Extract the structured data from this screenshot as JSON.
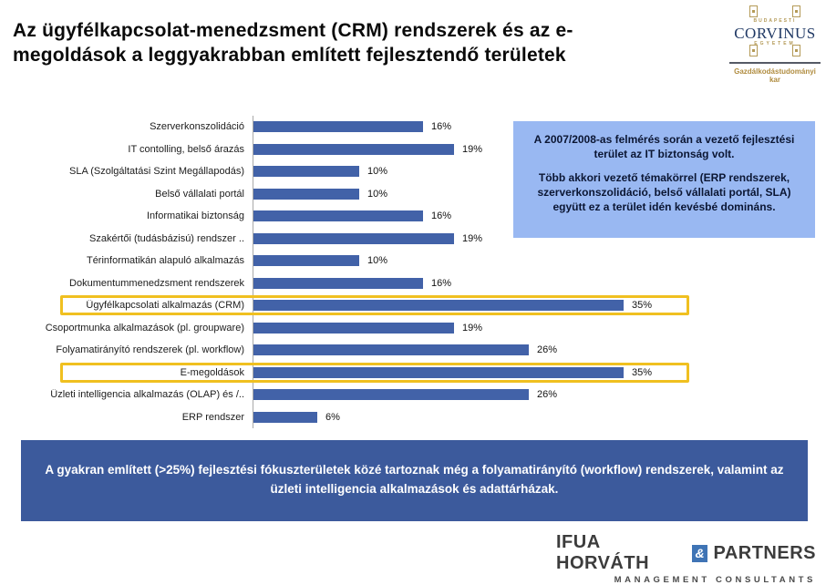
{
  "slide": {
    "title_lines": [
      "Az ügyfélkapcsolat-menedzsment (CRM) rendszerek és az e-",
      "megoldások a leggyakrabban említett fejlesztendő területek"
    ]
  },
  "logos": {
    "corvinus": {
      "top_word": "BUDAPESTI",
      "name": "CORVINUS",
      "sub_word": "EGYETEM",
      "faculty": "Gazdálkodástudományi kar"
    },
    "ifua": {
      "name_left": "IFUA HORVÁTH",
      "ampersand": "&",
      "name_right": "PARTNERS",
      "subtitle": "MANAGEMENT CONSULTANTS"
    }
  },
  "chart_data": {
    "type": "bar",
    "orientation": "horizontal",
    "title": "",
    "xlabel": "",
    "ylabel": "",
    "xlim": [
      0,
      40
    ],
    "grid": false,
    "legend": false,
    "categories": [
      "Szerverkonszolidáció",
      "IT contolling, belső árazás",
      "SLA (Szolgáltatási Szint Megállapodás)",
      "Belső vállalati portál",
      "Informatikai biztonság",
      "Szakértői (tudásbázisú) rendszer ..",
      "Térinformatikán alapuló alkalmazás",
      "Dokumentummenedzsment rendszerek",
      "Ügyfélkapcsolati alkalmazás (CRM)",
      "Csoportmunka alkalmazások (pl. groupware)",
      "Folyamatirányító rendszerek (pl. workflow)",
      "E-megoldások",
      "Üzleti intelligencia alkalmazás (OLAP) és /..",
      "ERP rendszer"
    ],
    "values": [
      16,
      19,
      10,
      10,
      16,
      19,
      10,
      16,
      35,
      19,
      26,
      35,
      26,
      6
    ],
    "value_labels": [
      "16%",
      "19%",
      "10%",
      "10%",
      "16%",
      "19%",
      "10%",
      "16%",
      "35%",
      "19%",
      "26%",
      "35%",
      "26%",
      "6%"
    ],
    "highlight_indexes": [
      8,
      11
    ],
    "highlighted_categories": [
      "Ügyfélkapcsolati alkalmazás (CRM)",
      "E-megoldások"
    ],
    "bar_color": "#4262a8",
    "highlight_border_color": "#f0c020"
  },
  "info_box": {
    "bg_color": "#99b8f2",
    "paragraphs": [
      "A 2007/2008-as felmérés során a vezető fejlesztési terület az IT biztonság volt.",
      "Több akkori vezető témakörrel (ERP rendszerek, szerverkonszolidáció, belső vállalati portál, SLA) együtt ez a terület idén kevésbé domináns."
    ]
  },
  "footer_box": {
    "bg_color": "#3c5a9c",
    "text": "A gyakran említett (>25%) fejlesztési fókuszterületek közé tartoznak még a folyamatirányító  (workflow) rendszerek, valamint  az üzleti intelligencia alkalmazások  és adattárházak."
  }
}
